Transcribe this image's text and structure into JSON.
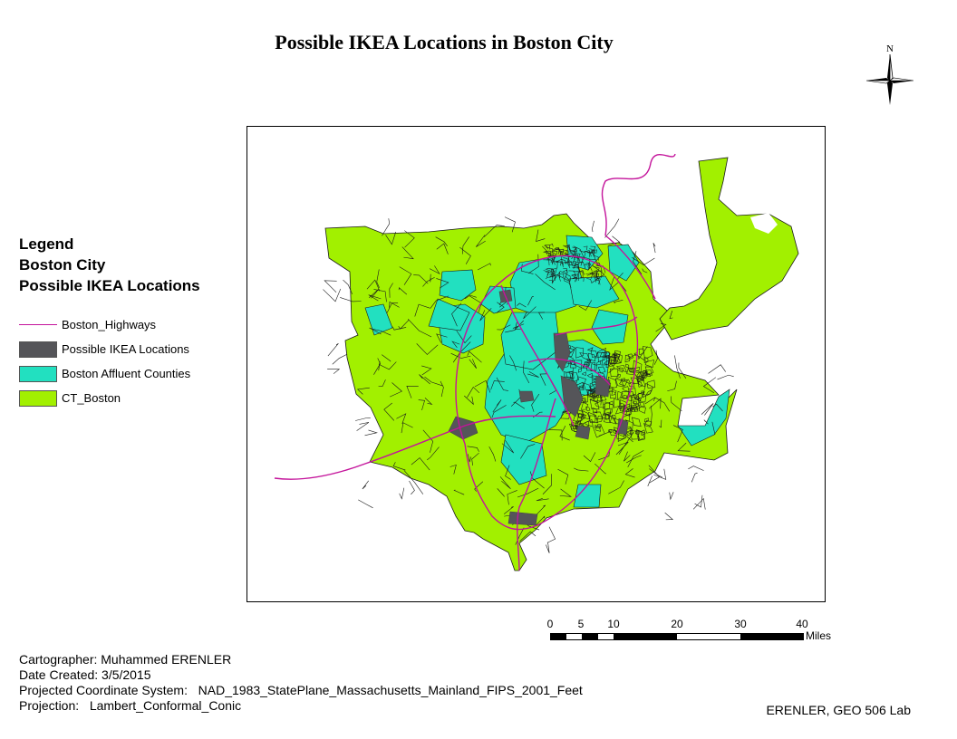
{
  "map": {
    "title": "Possible IKEA Locations in Boston City",
    "north_arrow": {
      "label": "N",
      "icon": "north-arrow-compass-icon"
    },
    "legend": {
      "headings": [
        "Legend",
        "Boston City",
        "Possible IKEA Locations"
      ],
      "items": [
        {
          "label": "Boston_Highways",
          "symbol": "line",
          "color": "#c4149b"
        },
        {
          "label": "Possible IKEA Locations",
          "symbol": "fill",
          "color": "#555559"
        },
        {
          "label": "Boston Affluent Counties",
          "symbol": "fill",
          "color": "#22e0c0"
        },
        {
          "label": "CT_Boston",
          "symbol": "fill",
          "color": "#a2f000"
        }
      ]
    },
    "scale_bar": {
      "ticks": [
        "0",
        "5",
        "10",
        "20",
        "30",
        "40"
      ],
      "units": "Miles"
    },
    "metadata": {
      "cartographer": "Cartographer: Muhammed ERENLER",
      "date_created": "Date Created: 3/5/2015",
      "coordinate_system": "Projected Coordinate System:   NAD_1983_StatePlane_Massachusetts_Mainland_FIPS_2001_Feet",
      "projection": "Projection:   Lambert_Conformal_Conic"
    },
    "footer_right": "ERENLER, GEO 506 Lab",
    "colors": {
      "census_tracts": "#a2f000",
      "affluent": "#22e0c0",
      "ikea": "#555559",
      "highway": "#c4149b",
      "tract_border": "#1a1a1a"
    }
  }
}
